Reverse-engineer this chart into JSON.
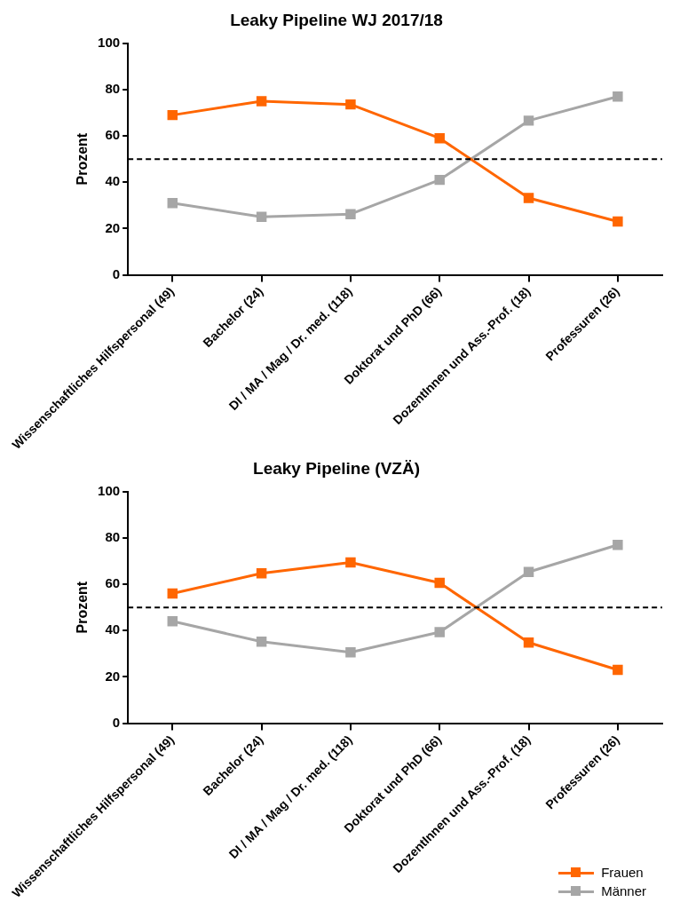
{
  "chart_data": [
    {
      "type": "line",
      "title": "Leaky Pipeline WJ 2017/18",
      "ylabel": "Prozent",
      "categories": [
        "Wissenschaftliches Hilfspersonal (49)",
        "Bachelor (24)",
        "DI / MA / Mag / Dr. med. (118)",
        "Doktorat und PhD (66)",
        "DozentInnen und Ass.-Prof. (18)",
        "Professuren (26)"
      ],
      "series": [
        {
          "color": "#ff6600",
          "values": [
            69,
            75,
            73.6,
            59,
            33.2,
            23
          ]
        },
        {
          "color": "#a6a6a6",
          "values": [
            31,
            25,
            26.2,
            41,
            66.6,
            77
          ]
        }
      ],
      "ylim": [
        0,
        100
      ],
      "yticks": [
        0,
        20,
        40,
        60,
        80,
        100
      ],
      "grid": false,
      "marker": "square",
      "line_style": "solid",
      "ref_lines": [
        {
          "axis": "y",
          "value": 50,
          "color": "#000000",
          "line_style": "dashed"
        }
      ]
    },
    {
      "type": "line",
      "title": "Leaky Pipeline (VZÄ)",
      "ylabel": "Prozent",
      "categories": [
        "Wissenschaftliches Hilfspersonal (49)",
        "Bachelor (24)",
        "DI / MA / Mag / Dr. med. (118)",
        "Doktorat und PhD (66)",
        "DozentInnen und Ass.-Prof. (18)",
        "Professuren (26)"
      ],
      "series": [
        {
          "name": "Frauen",
          "color": "#ff6600",
          "values": [
            56,
            64.7,
            69.4,
            60.6,
            34.8,
            23
          ]
        },
        {
          "name": "Männer",
          "color": "#a6a6a6",
          "values": [
            44,
            35.2,
            30.6,
            39.3,
            65.3,
            77
          ]
        }
      ],
      "ylim": [
        0,
        100
      ],
      "yticks": [
        0,
        20,
        40,
        60,
        80,
        100
      ],
      "grid": false,
      "marker": "square",
      "line_style": "solid",
      "legend": "bottom right",
      "ref_lines": [
        {
          "axis": "y",
          "value": 50,
          "color": "#000000",
          "line_style": "dashed"
        }
      ]
    }
  ]
}
